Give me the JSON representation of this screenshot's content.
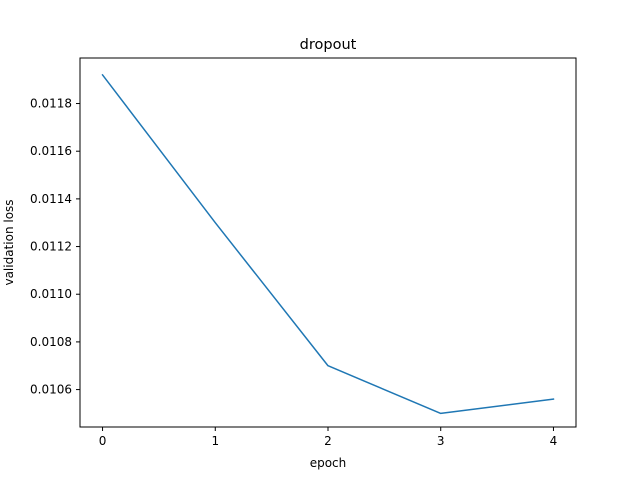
{
  "chart_data": {
    "type": "line",
    "title": "dropout",
    "xlabel": "epoch",
    "ylabel": "validation loss",
    "x": [
      0,
      1,
      2,
      3,
      4
    ],
    "series": [
      {
        "values": [
          0.01192,
          0.0113,
          0.0107,
          0.0105,
          0.01056
        ],
        "color": "#1f77b4"
      }
    ],
    "xticks": [
      0,
      1,
      2,
      3,
      4
    ],
    "xtick_labels": [
      "0",
      "1",
      "2",
      "3",
      "4"
    ],
    "yticks": [
      0.0106,
      0.0108,
      0.011,
      0.0112,
      0.0114,
      0.0116,
      0.0118
    ],
    "ytick_labels": [
      "0.0106",
      "0.0108",
      "0.0110",
      "0.0112",
      "0.0114",
      "0.0116",
      "0.0118"
    ],
    "xlim": [
      -0.2,
      4.2
    ],
    "ylim": [
      0.010443,
      0.011991
    ],
    "grid": false,
    "legend": false
  }
}
